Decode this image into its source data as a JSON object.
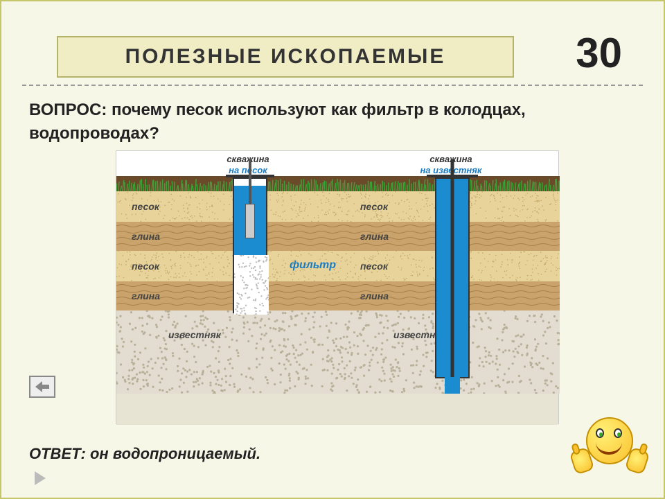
{
  "header": {
    "title": "ПОЛЕЗНЫЕ  ИСКОПАЕМЫЕ",
    "points": "30"
  },
  "question": "ВОПРОС: почему песок используют как фильтр в колодцах, водопроводах?",
  "answer": "ОТВЕТ: он водопроницаемый.",
  "diagram": {
    "well1_line1": "скважина",
    "well1_line2": "на песок",
    "well2_line1": "скважина",
    "well2_line2": "на известняк",
    "filter_label": "фильтр",
    "layers": {
      "sand": "песок",
      "clay": "глина",
      "limestone": "известняк"
    },
    "colors": {
      "grass": "#3fa037",
      "sand": "#e8d49a",
      "clay": "#c9a36b",
      "limestone_bg": "#e2ddd0",
      "limestone_dots": "#b9b09a",
      "water": "#1a8ccf",
      "sky": "#ffffff"
    }
  }
}
